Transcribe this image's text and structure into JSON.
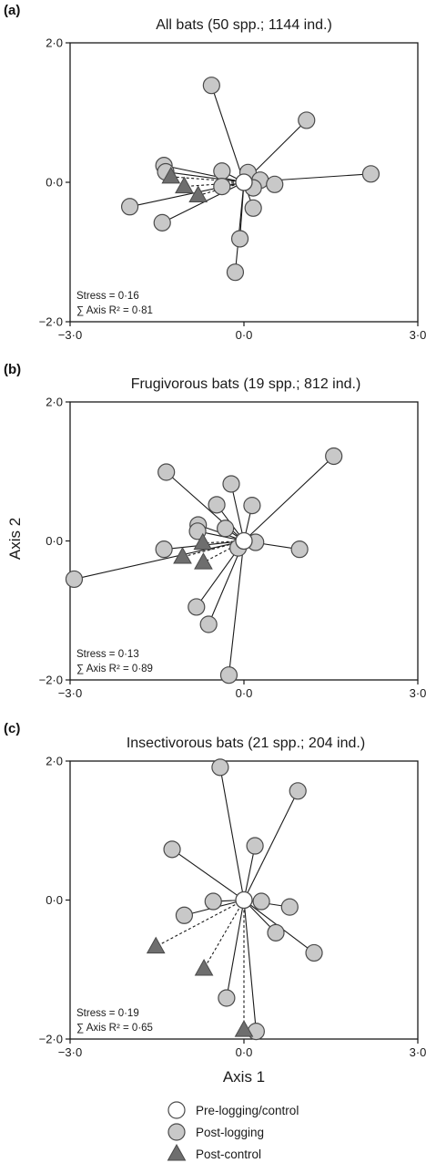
{
  "figure": {
    "xlabel": "Axis 1",
    "ylabel": "Axis 2",
    "legend": [
      {
        "key": "pre",
        "label": "Pre-logging/control",
        "marker": "open-circle"
      },
      {
        "key": "post_logging",
        "label": "Post-logging",
        "marker": "grey-circle"
      },
      {
        "key": "post_control",
        "label": "Post-control",
        "marker": "grey-triangle"
      }
    ],
    "colors": {
      "post_logging_fill": "#c8c8c8",
      "post_control_fill": "#6e6e6e",
      "pre_fill": "#ffffff",
      "edge": "#4a4a4a",
      "frame": "#1a1a1a"
    }
  },
  "chart_data": [
    {
      "type": "scatter",
      "panel_label": "(a)",
      "title": "All bats (50 spp.; 1144 ind.)",
      "xlim": [
        -3,
        3
      ],
      "ylim": [
        -2,
        2
      ],
      "x_ticks": [
        "−3·0",
        "0·0",
        "3·0"
      ],
      "y_ticks": [
        "2·0",
        "0·0",
        "−2·0"
      ],
      "stress": "Stress = 0·16",
      "axis_r2": "∑ Axis R² = 0·81",
      "centroid": [
        0.0,
        0.0
      ],
      "series": [
        {
          "name": "Post-logging",
          "points": [
            [
              -0.56,
              1.39
            ],
            [
              1.08,
              0.89
            ],
            [
              2.19,
              0.12
            ],
            [
              -1.38,
              0.24
            ],
            [
              -1.35,
              0.15
            ],
            [
              -0.38,
              0.16
            ],
            [
              0.07,
              0.14
            ],
            [
              0.28,
              0.03
            ],
            [
              0.53,
              -0.03
            ],
            [
              -0.38,
              -0.06
            ],
            [
              0.16,
              -0.08
            ],
            [
              0.16,
              -0.37
            ],
            [
              -1.97,
              -0.35
            ],
            [
              -1.41,
              -0.58
            ],
            [
              -0.07,
              -0.81
            ],
            [
              -0.15,
              -1.29
            ]
          ]
        },
        {
          "name": "Post-control",
          "points": [
            [
              -1.26,
              0.08
            ],
            [
              -1.03,
              -0.06
            ],
            [
              -0.79,
              -0.19
            ]
          ]
        }
      ]
    },
    {
      "type": "scatter",
      "panel_label": "(b)",
      "title": "Frugivorous bats (19 spp.; 812 ind.)",
      "xlim": [
        -3,
        3
      ],
      "ylim": [
        -2,
        2
      ],
      "x_ticks": [
        "−3·0",
        "0·0",
        "3·0"
      ],
      "y_ticks": [
        "2·0",
        "0·0",
        "−2·0"
      ],
      "stress": "Stress = 0·13",
      "axis_r2": "∑ Axis R² = 0·89",
      "centroid": [
        0.0,
        0.0
      ],
      "series": [
        {
          "name": "Post-logging",
          "points": [
            [
              1.55,
              1.22
            ],
            [
              -1.34,
              0.99
            ],
            [
              -0.22,
              0.82
            ],
            [
              -0.47,
              0.52
            ],
            [
              0.14,
              0.51
            ],
            [
              -0.79,
              0.23
            ],
            [
              -0.8,
              0.14
            ],
            [
              -0.32,
              0.18
            ],
            [
              -1.38,
              -0.12
            ],
            [
              0.2,
              -0.02
            ],
            [
              -0.1,
              -0.1
            ],
            [
              0.96,
              -0.12
            ],
            [
              -2.93,
              -0.55
            ],
            [
              -0.82,
              -0.95
            ],
            [
              -0.61,
              -1.2
            ],
            [
              -0.26,
              -1.93
            ]
          ]
        },
        {
          "name": "Post-control",
          "points": [
            [
              -0.71,
              -0.03
            ],
            [
              -1.06,
              -0.23
            ],
            [
              -0.7,
              -0.31
            ]
          ]
        }
      ]
    },
    {
      "type": "scatter",
      "panel_label": "(c)",
      "title": "Insectivorous bats (21 spp.; 204 ind.)",
      "xlim": [
        -3,
        3
      ],
      "ylim": [
        -2,
        2
      ],
      "x_ticks": [
        "−3·0",
        "0·0",
        "3·0"
      ],
      "y_ticks": [
        "2·0",
        "0·0",
        "−2·0"
      ],
      "stress": "Stress = 0·19",
      "axis_r2": "∑ Axis R² = 0·65",
      "centroid": [
        0.0,
        0.0
      ],
      "series": [
        {
          "name": "Post-logging",
          "points": [
            [
              -0.41,
              1.91
            ],
            [
              0.93,
              1.57
            ],
            [
              0.19,
              0.78
            ],
            [
              -1.24,
              0.73
            ],
            [
              -0.53,
              -0.02
            ],
            [
              0.3,
              -0.02
            ],
            [
              0.79,
              -0.1
            ],
            [
              -1.03,
              -0.22
            ],
            [
              0.55,
              -0.47
            ],
            [
              1.21,
              -0.76
            ],
            [
              -0.3,
              -1.41
            ],
            [
              0.21,
              -1.89
            ]
          ]
        },
        {
          "name": "Post-control",
          "points": [
            [
              -1.52,
              -0.67
            ],
            [
              -0.69,
              -0.99
            ],
            [
              0.0,
              -1.87
            ]
          ]
        }
      ]
    }
  ]
}
